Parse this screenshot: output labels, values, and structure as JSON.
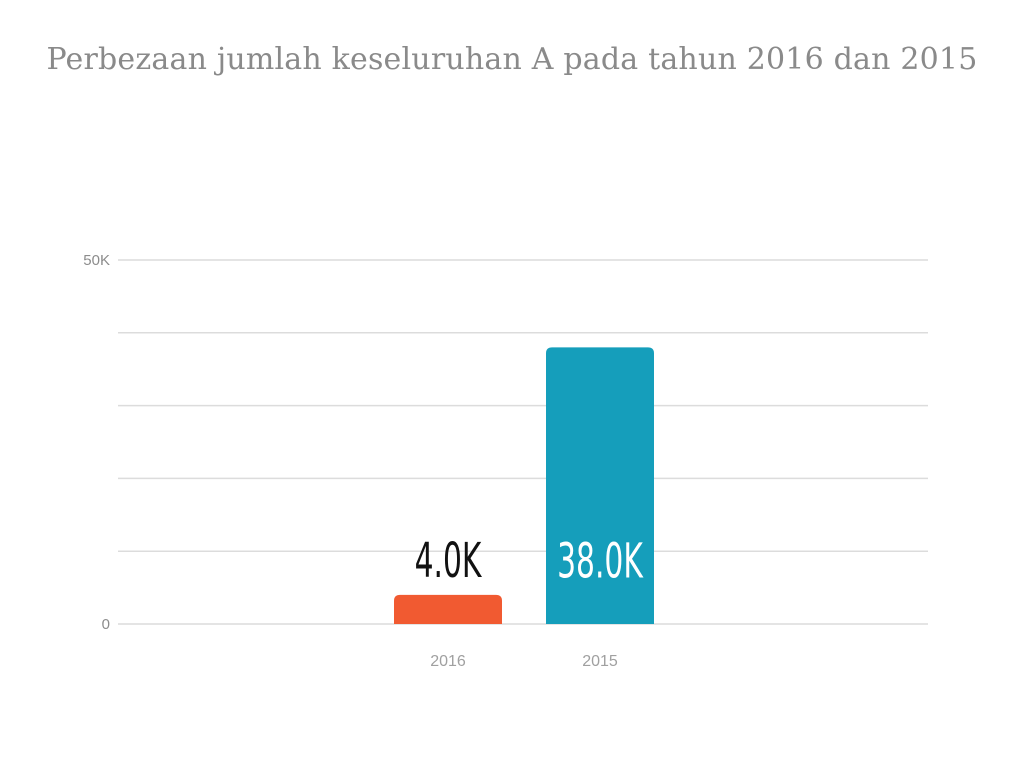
{
  "chart_data": {
    "type": "bar",
    "title": "Perbezaan jumlah keseluruhan A pada tahun 2016 dan 2015",
    "categories": [
      "2016",
      "2015"
    ],
    "values": [
      4000,
      38000
    ],
    "data_labels": [
      "4.0K",
      "38.0K"
    ],
    "bar_colors": [
      "#f15a31",
      "#159ebb"
    ],
    "data_label_colors": [
      "#111111",
      "#ffffff"
    ],
    "ylim": [
      0,
      50000
    ],
    "y_ticks": [
      {
        "value": 0,
        "label": "0"
      },
      {
        "value": 50000,
        "label": "50K"
      }
    ],
    "gridlines": [
      0,
      10000,
      20000,
      30000,
      40000,
      50000
    ],
    "grid": true,
    "legend": "none"
  }
}
